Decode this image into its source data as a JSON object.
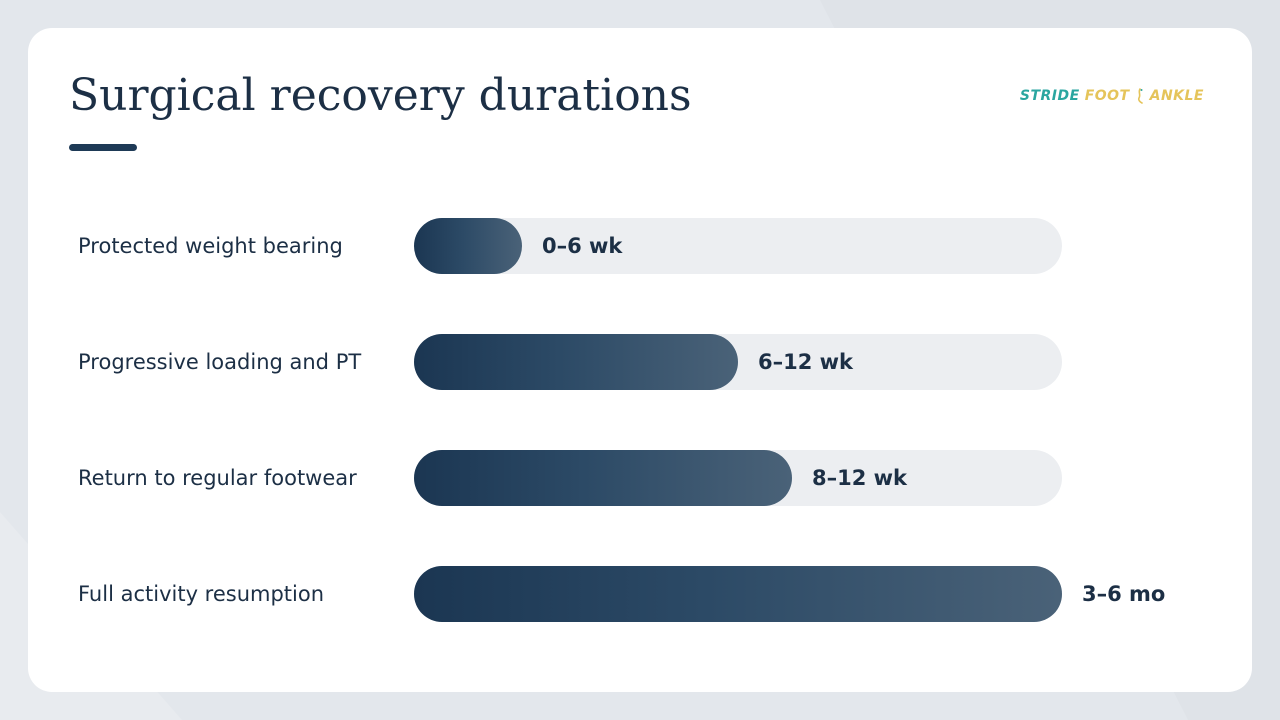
{
  "slide": {
    "title": "Surgical recovery durations"
  },
  "logo": {
    "word1": "STRIDE",
    "word2": "FOOT",
    "word3": "ANKLE",
    "icon": "foot-icon"
  },
  "colors": {
    "title": "#1c2f45",
    "accent_rule": "#1e3a56",
    "bar_start": "#1b3652",
    "bar_end": "#4a6278",
    "track": "#eceef1",
    "logo_teal": "#2aa6a0",
    "logo_gold": "#e5c45a"
  },
  "chart_data": {
    "type": "bar",
    "orientation": "horizontal",
    "categories": [
      "Protected weight bearing",
      "Progressive loading and PT",
      "Return to regular footwear",
      "Full activity resumption"
    ],
    "values": [
      1,
      6,
      7,
      12
    ],
    "value_labels": [
      "0–6 wk",
      "6–12 wk",
      "8–12 wk",
      "3–6 mo"
    ],
    "xlim": [
      0,
      12
    ],
    "grid": false,
    "legend": "none"
  }
}
